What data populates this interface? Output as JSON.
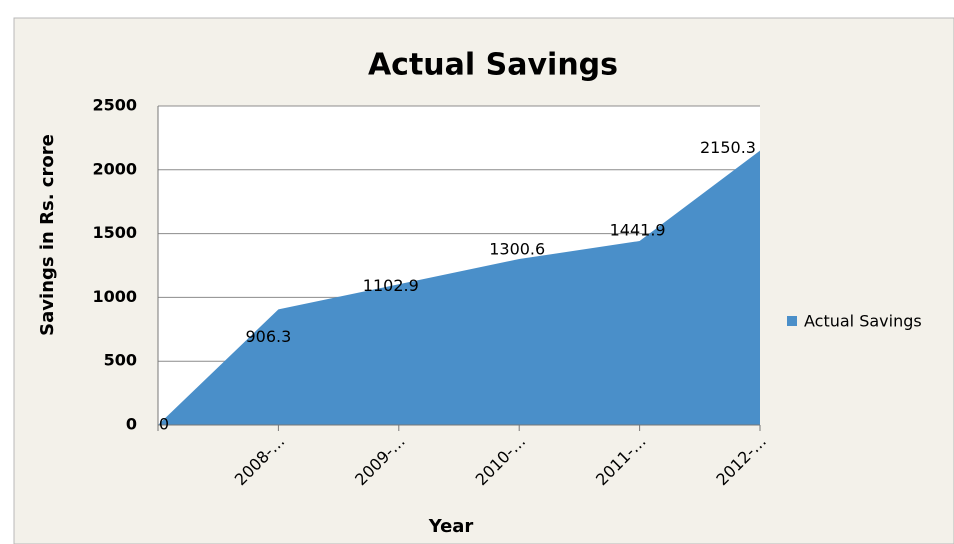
{
  "chart_data": {
    "type": "area",
    "title": "Actual Savings",
    "y_label": "Savings in Rs. crore",
    "x_label": "Year",
    "categories": [
      null,
      "2008-…",
      "2009-…",
      "2010-…",
      "2011-…",
      "2012-…"
    ],
    "series": [
      {
        "name": "Actual Savings",
        "color": "#4a8fc9",
        "values": [
          0,
          906.3,
          1102.9,
          1300.6,
          1441.9,
          2150.3
        ]
      }
    ],
    "ylim": [
      0,
      2500
    ],
    "yticks": [
      0,
      500,
      1000,
      1500,
      2000,
      2500
    ],
    "grid": true,
    "legend": "right"
  }
}
